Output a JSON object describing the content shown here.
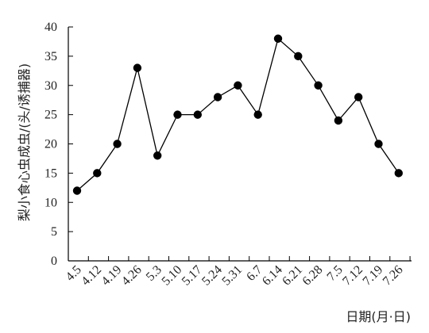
{
  "chart_data": {
    "type": "line",
    "title": "",
    "xlabel": "日期(月·日)",
    "ylabel": "梨小食心虫成虫/(头/诱捕器)",
    "categories": [
      "4.5",
      "4.12",
      "4.19",
      "4.26",
      "5.3",
      "5.10",
      "5.17",
      "5.24",
      "5.31",
      "6.7",
      "6.14",
      "6.21",
      "6.28",
      "7.5",
      "7.12",
      "7.19",
      "7.26"
    ],
    "values": [
      12,
      15,
      20,
      33,
      18,
      25,
      25,
      28,
      30,
      25,
      38,
      35,
      30,
      24,
      28,
      20,
      15
    ],
    "ylim": [
      0,
      40
    ],
    "yticks": [
      0,
      5,
      10,
      15,
      20,
      25,
      30,
      35,
      40
    ],
    "grid": false,
    "line_color": "#000000",
    "marker_color": "#000000",
    "marker": "filled-circle"
  }
}
